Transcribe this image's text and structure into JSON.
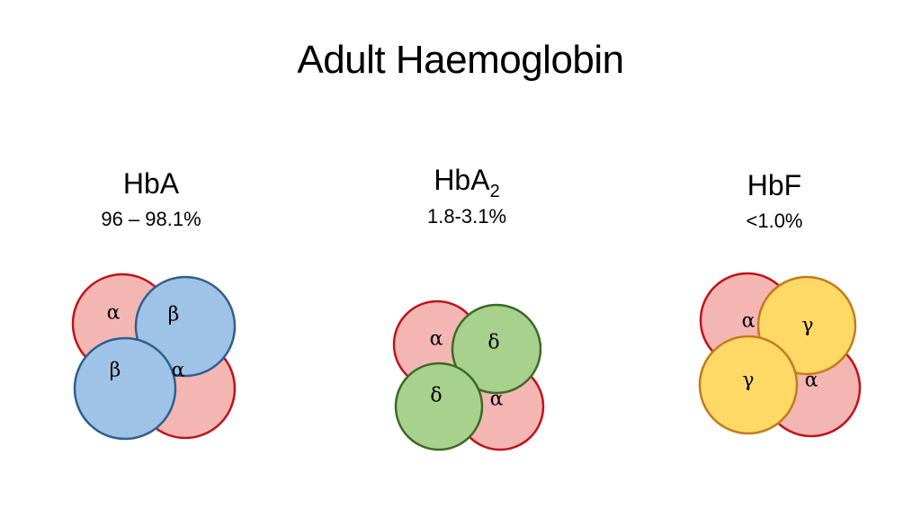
{
  "title": "Adult Haemoglobin",
  "variants": [
    {
      "name": "HbA",
      "subscript": "",
      "percentage": "96 – 98.1%",
      "subunits": [
        "α",
        "β",
        "β",
        "α"
      ]
    },
    {
      "name": "HbA",
      "subscript": "2",
      "percentage": "1.8-3.1%",
      "subunits": [
        "α",
        "δ",
        "δ",
        "α"
      ]
    },
    {
      "name": "HbF",
      "subscript": "",
      "percentage": "<1.0%",
      "subunits": [
        "α",
        "γ",
        "γ",
        "α"
      ]
    }
  ],
  "colors": {
    "alpha_fill": "#f4b6b3",
    "alpha_stroke": "#c0131a",
    "beta_fill": "#9fc3e6",
    "beta_stroke": "#2f5f8f",
    "delta_fill": "#a9d18e",
    "delta_stroke": "#3a6b26",
    "gamma_fill": "#ffd966",
    "gamma_stroke": "#c77a1b"
  }
}
